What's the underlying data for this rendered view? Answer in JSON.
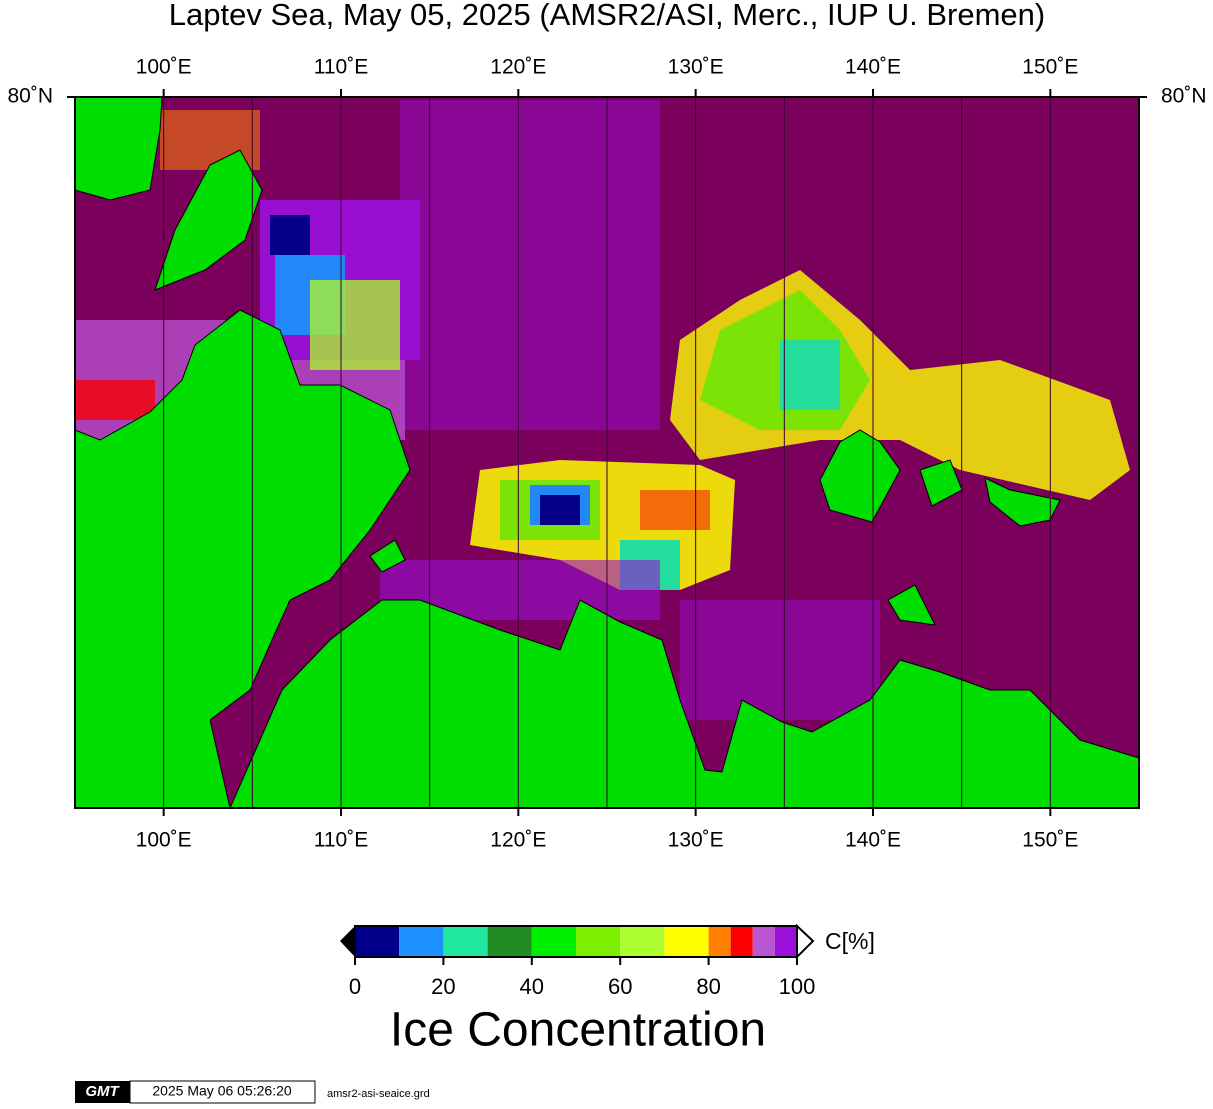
{
  "map": {
    "title": "Laptev Sea, May 05, 2025 (AMSR2/ASI, Merc., IUP U. Bremen)",
    "lonlim": [
      95,
      155
    ],
    "lon_ticks": [
      {
        "value": 100,
        "label": "100˚E"
      },
      {
        "value": 110,
        "label": "110˚E"
      },
      {
        "value": 120,
        "label": "120˚E"
      },
      {
        "value": 130,
        "label": "130˚E"
      },
      {
        "value": 140,
        "label": "140˚E"
      },
      {
        "value": 150,
        "label": "150˚E"
      }
    ],
    "lon_grid": [
      105,
      115,
      125,
      135,
      145
    ],
    "lat_tick": {
      "value": 80,
      "label": "80˚N"
    }
  },
  "colorbar": {
    "bounds": [
      0,
      10,
      20,
      30,
      40,
      50,
      60,
      70,
      80,
      85,
      90,
      95,
      100
    ],
    "colors": [
      "#00008b",
      "#1e90ff",
      "#20e8a0",
      "#228b22",
      "#00ee00",
      "#7cf000",
      "#adff2f",
      "#ffff00",
      "#ff7f00",
      "#ff0000",
      "#ba55d3",
      "#9b10d8"
    ],
    "ticks": [
      0,
      20,
      40,
      60,
      80,
      100
    ],
    "unit": "C[%]",
    "title": "Ice Concentration"
  },
  "footer": {
    "logo": "GMT",
    "timestamp": "2025 May 06 05:26:20",
    "file": "amsr2-asi-seaice.grd"
  }
}
